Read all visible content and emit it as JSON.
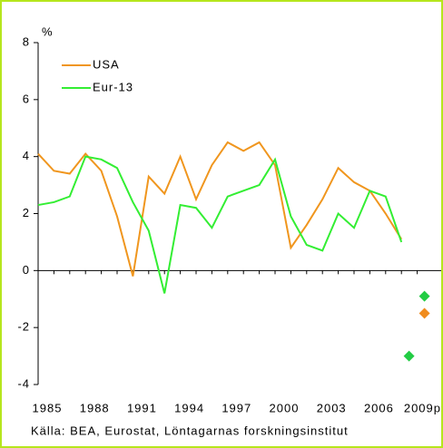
{
  "chart_data": {
    "type": "line",
    "y_unit": "%",
    "source": "Källa: BEA, Eurostat, Löntagarnas forskningsinstitut",
    "categories": [
      "1985",
      null,
      null,
      "1988",
      null,
      null,
      "1991",
      null,
      null,
      "1994",
      null,
      null,
      "1997",
      null,
      null,
      "2000",
      null,
      null,
      "2003",
      null,
      null,
      "2006",
      null,
      null,
      "2009p"
    ],
    "series": [
      {
        "name": "USA",
        "color": "#f0961e",
        "values": [
          4.1,
          3.5,
          3.4,
          4.1,
          3.5,
          1.9,
          -0.2,
          3.3,
          2.7,
          4.0,
          2.5,
          3.7,
          4.5,
          4.2,
          4.5,
          3.7,
          0.8,
          1.6,
          2.5,
          3.6,
          3.1,
          2.8,
          2.0,
          1.1,
          null
        ]
      },
      {
        "name": "Eur-13",
        "color": "#33ee33",
        "values": [
          2.3,
          2.4,
          2.6,
          4.0,
          3.9,
          3.6,
          2.4,
          1.4,
          -0.8,
          2.3,
          2.2,
          1.5,
          2.6,
          2.8,
          3.0,
          3.9,
          1.9,
          0.9,
          0.7,
          2.0,
          1.5,
          2.8,
          2.6,
          1.0,
          null
        ]
      }
    ],
    "markers": [
      {
        "color": "#22cc44",
        "value": -0.9
      },
      {
        "color": "#f08c1e",
        "value": -1.5
      },
      {
        "color": "#22cc44",
        "value": -3.0
      }
    ],
    "ylim": [
      -4,
      8
    ],
    "yticks": [
      -4,
      -2,
      0,
      2,
      4,
      6,
      8
    ],
    "legend": "top-left"
  }
}
